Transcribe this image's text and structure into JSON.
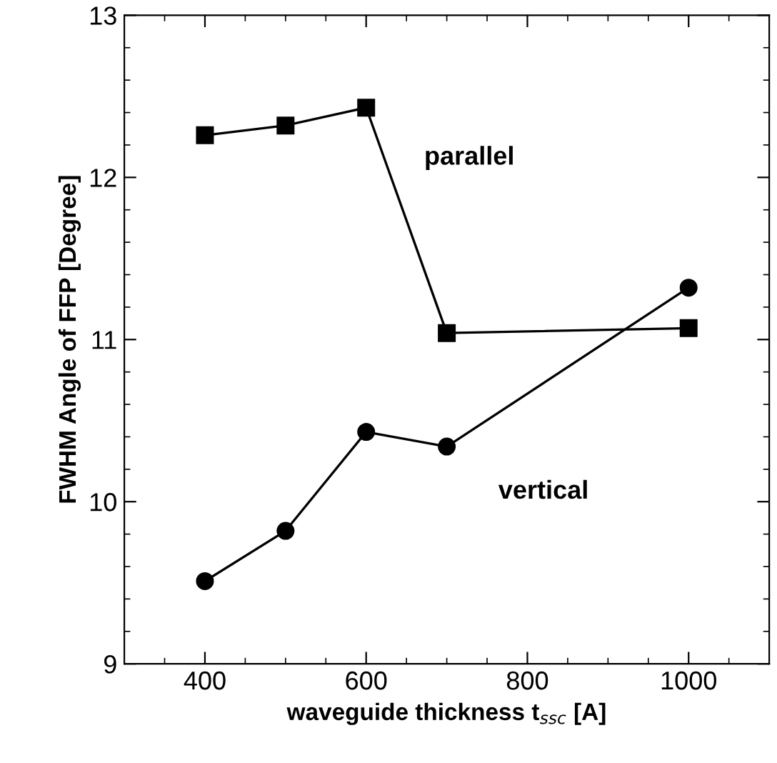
{
  "chart_data": {
    "type": "line",
    "xlabel": "waveguide thickness t$_{ssc}$ [A]",
    "ylabel": "FWHM Angle of FFP [Degree]",
    "x": [
      400,
      500,
      600,
      700,
      1000
    ],
    "series": [
      {
        "name": "parallel",
        "color": "#000000",
        "marker": "square",
        "values": [
          12.26,
          12.32,
          12.43,
          11.04,
          11.07
        ]
      },
      {
        "name": "vertical",
        "color": "#000000",
        "marker": "circle",
        "values": [
          9.51,
          9.82,
          10.43,
          10.34,
          11.32
        ]
      }
    ],
    "xlim": [
      300,
      1100
    ],
    "xticks": [
      400,
      600,
      800,
      1000
    ],
    "ylim": [
      9,
      13
    ],
    "yticks": [
      9,
      10,
      11,
      12,
      13
    ],
    "grid": false,
    "legend": false,
    "line_style": "solid"
  }
}
